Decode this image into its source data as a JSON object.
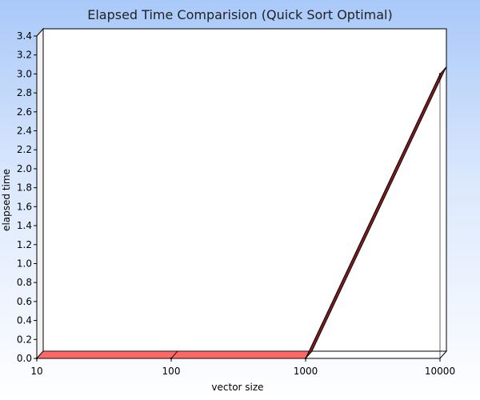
{
  "chart_data": {
    "type": "area",
    "title": "Elapsed Time Comparision (Quick Sort Optimal)",
    "xlabel": "vector size",
    "ylabel": "elapsed time",
    "x_scale": "log",
    "categories": [
      "10",
      "100",
      "1000",
      "10000"
    ],
    "x": [
      10,
      100,
      1000,
      10000
    ],
    "series": [
      {
        "values": [
          0,
          0,
          0,
          3.0
        ]
      }
    ],
    "ylim": [
      0,
      3.4
    ],
    "y_ticks": [
      "0.0",
      "0.2",
      "0.4",
      "0.6",
      "0.8",
      "1.0",
      "1.2",
      "1.4",
      "1.6",
      "1.8",
      "2.0",
      "2.2",
      "2.4",
      "2.6",
      "2.8",
      "3.0",
      "3.2",
      "3.4"
    ],
    "grid": false,
    "three_d": true,
    "colors": {
      "series_fill": "#e85c5c",
      "series_top": "#ff6666",
      "series_side": "#7a1c1c",
      "plot_background": "#ffffff",
      "title": "#222222"
    }
  }
}
